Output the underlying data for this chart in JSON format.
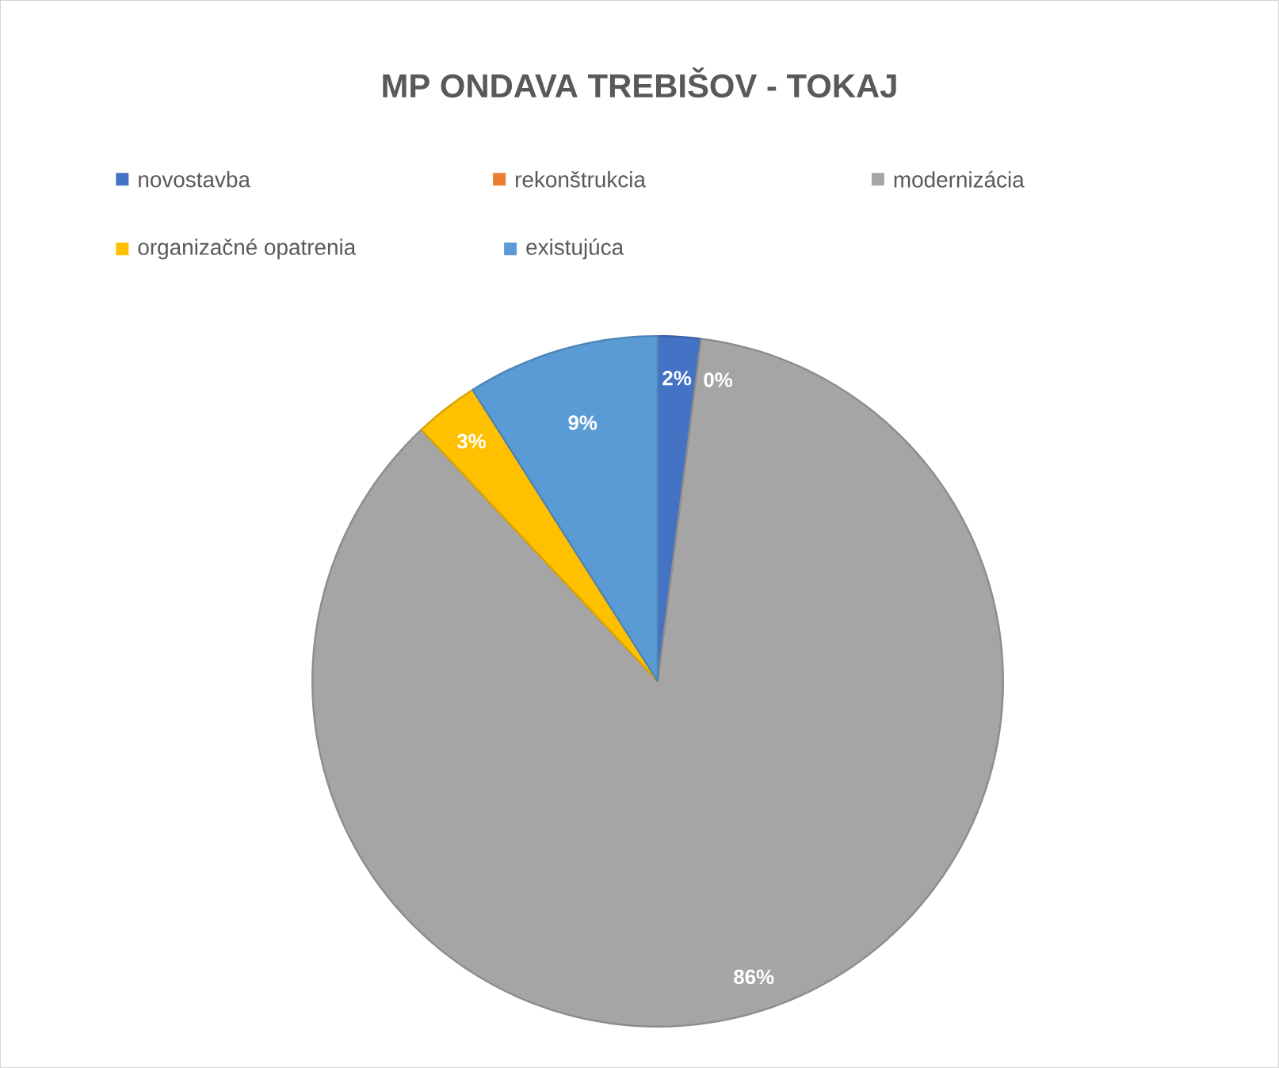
{
  "chart_data": {
    "type": "pie",
    "title": "MP ONDAVA TREBIŠOV - TOKAJ",
    "categories": [
      "novostavba",
      "rekonštrukcia",
      "modernizácia",
      "organizačné opatrenia",
      "existujúca"
    ],
    "values": [
      2,
      0,
      86,
      3,
      9
    ],
    "colors": [
      "#4472c4",
      "#ed7d31",
      "#a5a5a5",
      "#ffc000",
      "#5b9bd5"
    ],
    "value_labels": [
      "2%",
      "0%",
      "86%",
      "3%",
      "9%"
    ],
    "legend": "top"
  }
}
